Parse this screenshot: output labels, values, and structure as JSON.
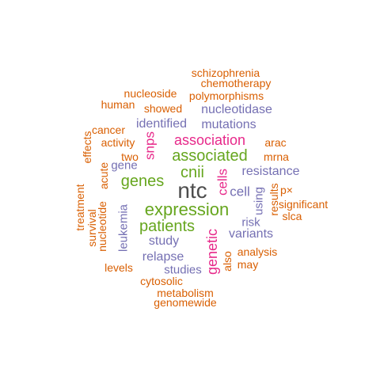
{
  "palette": {
    "dark": "#4d4d4d",
    "green": "#66a61e",
    "magenta": "#e7298a",
    "purple": "#7570b3",
    "orange": "#d95f02"
  },
  "words": [
    {
      "text": "ntc",
      "color": "dark"
    },
    {
      "text": "expression",
      "color": "green"
    },
    {
      "text": "associated",
      "color": "green"
    },
    {
      "text": "patients",
      "color": "green"
    },
    {
      "text": "genes",
      "color": "green"
    },
    {
      "text": "cnii",
      "color": "green"
    },
    {
      "text": "association",
      "color": "magenta"
    },
    {
      "text": "genetic",
      "color": "magenta"
    },
    {
      "text": "cells",
      "color": "magenta"
    },
    {
      "text": "snps",
      "color": "magenta"
    },
    {
      "text": "cell",
      "color": "purple"
    },
    {
      "text": "mutations",
      "color": "purple"
    },
    {
      "text": "resistance",
      "color": "purple"
    },
    {
      "text": "variants",
      "color": "purple"
    },
    {
      "text": "relapse",
      "color": "purple"
    },
    {
      "text": "study",
      "color": "purple"
    },
    {
      "text": "nucleotidase",
      "color": "purple"
    },
    {
      "text": "identified",
      "color": "purple"
    },
    {
      "text": "leukemia",
      "color": "purple"
    },
    {
      "text": "gene",
      "color": "purple"
    },
    {
      "text": "risk",
      "color": "purple"
    },
    {
      "text": "using",
      "color": "purple"
    },
    {
      "text": "studies",
      "color": "purple"
    },
    {
      "text": "schizophrenia",
      "color": "orange"
    },
    {
      "text": "chemotherapy",
      "color": "orange"
    },
    {
      "text": "polymorphisms",
      "color": "orange"
    },
    {
      "text": "nucleoside",
      "color": "orange"
    },
    {
      "text": "human",
      "color": "orange"
    },
    {
      "text": "showed",
      "color": "orange"
    },
    {
      "text": "cancer",
      "color": "orange"
    },
    {
      "text": "activity",
      "color": "orange"
    },
    {
      "text": "effects",
      "color": "orange"
    },
    {
      "text": "two",
      "color": "orange"
    },
    {
      "text": "arac",
      "color": "orange"
    },
    {
      "text": "mrna",
      "color": "orange"
    },
    {
      "text": "acute",
      "color": "orange"
    },
    {
      "text": "results",
      "color": "orange"
    },
    {
      "text": "p×",
      "color": "orange"
    },
    {
      "text": "treatment",
      "color": "orange"
    },
    {
      "text": "survival",
      "color": "orange"
    },
    {
      "text": "nucleotide",
      "color": "orange"
    },
    {
      "text": "significant",
      "color": "orange"
    },
    {
      "text": "slca",
      "color": "orange"
    },
    {
      "text": "analysis",
      "color": "orange"
    },
    {
      "text": "may",
      "color": "orange"
    },
    {
      "text": "also",
      "color": "orange"
    },
    {
      "text": "levels",
      "color": "orange"
    },
    {
      "text": "cytosolic",
      "color": "orange"
    },
    {
      "text": "metabolism",
      "color": "orange"
    },
    {
      "text": "genomewide",
      "color": "orange"
    }
  ]
}
